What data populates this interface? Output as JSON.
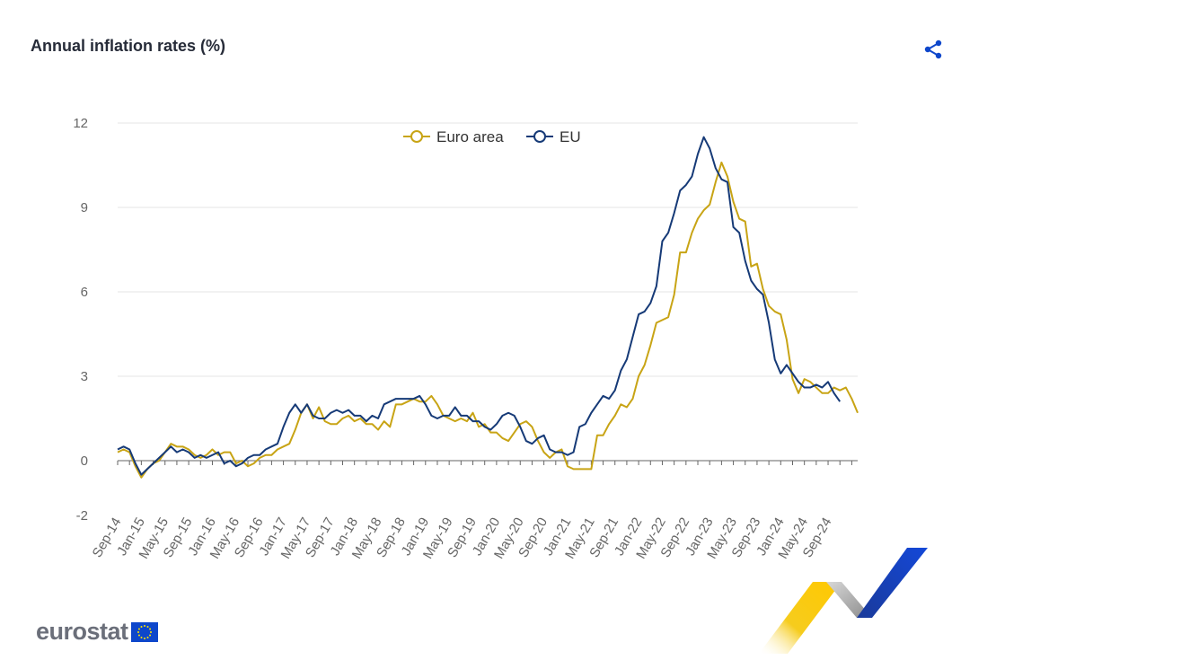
{
  "header": {
    "title": "Annual inflation rates (%)",
    "share_icon": "share-icon"
  },
  "logo": {
    "text": "eurostat",
    "flag_icon": "eu-flag-icon"
  },
  "colors": {
    "euro_area": "#c8a415",
    "eu": "#163a77",
    "grid": "#e6e6e6",
    "axis": "#666666"
  },
  "chart_data": {
    "type": "line",
    "title": "Annual inflation rates (%)",
    "xlabel": "",
    "ylabel": "",
    "ylim": [
      -2,
      12
    ],
    "yticks": [
      12,
      9,
      6,
      3,
      0,
      -2
    ],
    "grid": true,
    "legend_position": "top-center",
    "x_tick_labels": [
      "Sep-14",
      "Jan-15",
      "May-15",
      "Sep-15",
      "Jan-16",
      "May-16",
      "Sep-16",
      "Jan-17",
      "May-17",
      "Sep-17",
      "Jan-18",
      "May-18",
      "Sep-18",
      "Jan-19",
      "May-19",
      "Sep-19",
      "Jan-20",
      "May-20",
      "Sep-20",
      "Jan-21",
      "May-21",
      "Sep-21",
      "Jan-22",
      "May-22",
      "Sep-22",
      "Jan-23",
      "May-23",
      "Sep-23",
      "Jan-24",
      "May-24",
      "Sep-24"
    ],
    "x_start": "Sep-14",
    "x_end": "Sep-24",
    "series": [
      {
        "name": "Euro area",
        "color": "#c8a415",
        "values": [
          0.3,
          0.4,
          0.3,
          -0.2,
          -0.6,
          -0.3,
          -0.1,
          0.0,
          0.3,
          0.6,
          0.5,
          0.5,
          0.4,
          0.2,
          0.1,
          0.2,
          0.4,
          0.2,
          0.3,
          0.3,
          -0.1,
          0.0,
          -0.2,
          -0.1,
          0.1,
          0.2,
          0.2,
          0.4,
          0.5,
          0.6,
          1.1,
          1.7,
          2.0,
          1.5,
          1.9,
          1.4,
          1.3,
          1.3,
          1.5,
          1.6,
          1.4,
          1.5,
          1.3,
          1.3,
          1.1,
          1.4,
          1.2,
          2.0,
          2.0,
          2.1,
          2.2,
          2.1,
          2.1,
          2.3,
          2.0,
          1.6,
          1.5,
          1.4,
          1.5,
          1.4,
          1.7,
          1.2,
          1.3,
          1.0,
          1.0,
          0.8,
          0.7,
          1.0,
          1.3,
          1.4,
          1.2,
          0.7,
          0.3,
          0.1,
          0.3,
          0.4,
          -0.2,
          -0.3,
          -0.3,
          -0.3,
          -0.3,
          0.9,
          0.9,
          1.3,
          1.6,
          2.0,
          1.9,
          2.2,
          3.0,
          3.4,
          4.1,
          4.9,
          5.0,
          5.1,
          5.9,
          7.4,
          7.4,
          8.1,
          8.6,
          8.9,
          9.1,
          9.9,
          10.6,
          10.1,
          9.2,
          8.6,
          8.5,
          6.9,
          7.0,
          6.1,
          5.5,
          5.3,
          5.2,
          4.3,
          2.9,
          2.4,
          2.9,
          2.8,
          2.6,
          2.4,
          2.4,
          2.6,
          2.5,
          2.6,
          2.2,
          1.7
        ]
      },
      {
        "name": "EU",
        "color": "#163a77",
        "values": [
          0.4,
          0.5,
          0.4,
          -0.1,
          -0.5,
          -0.3,
          -0.1,
          0.1,
          0.3,
          0.5,
          0.3,
          0.4,
          0.3,
          0.1,
          0.2,
          0.1,
          0.2,
          0.3,
          -0.1,
          0.0,
          -0.2,
          -0.1,
          0.1,
          0.2,
          0.2,
          0.4,
          0.5,
          0.6,
          1.2,
          1.7,
          2.0,
          1.7,
          2.0,
          1.6,
          1.5,
          1.5,
          1.7,
          1.8,
          1.7,
          1.8,
          1.6,
          1.6,
          1.4,
          1.6,
          1.5,
          2.0,
          2.1,
          2.2,
          2.2,
          2.2,
          2.2,
          2.3,
          2.0,
          1.6,
          1.5,
          1.6,
          1.6,
          1.9,
          1.6,
          1.6,
          1.4,
          1.4,
          1.2,
          1.1,
          1.3,
          1.6,
          1.7,
          1.6,
          1.2,
          0.7,
          0.6,
          0.8,
          0.9,
          0.4,
          0.3,
          0.3,
          0.2,
          0.3,
          1.2,
          1.3,
          1.7,
          2.0,
          2.3,
          2.2,
          2.5,
          3.2,
          3.6,
          4.4,
          5.2,
          5.3,
          5.6,
          6.2,
          7.8,
          8.1,
          8.8,
          9.6,
          9.8,
          10.1,
          10.9,
          11.5,
          11.1,
          10.4,
          10.0,
          9.9,
          8.3,
          8.1,
          7.1,
          6.4,
          6.1,
          5.9,
          4.9,
          3.6,
          3.1,
          3.4,
          3.1,
          2.8,
          2.6,
          2.6,
          2.7,
          2.6,
          2.8,
          2.4,
          2.1
        ]
      }
    ]
  }
}
